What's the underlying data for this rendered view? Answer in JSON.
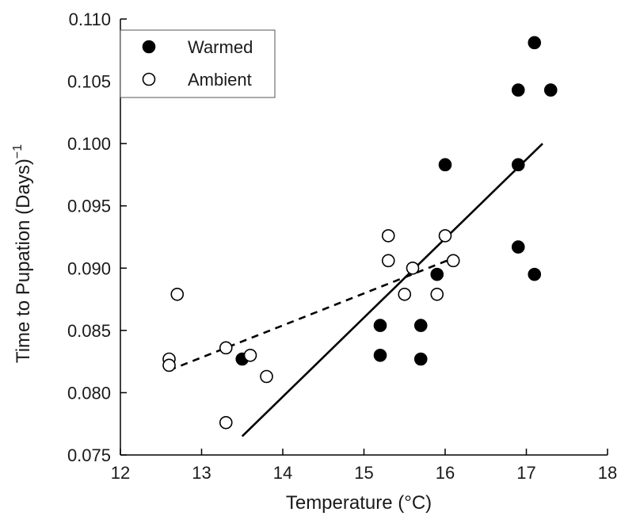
{
  "chart_data": {
    "type": "scatter",
    "title": "",
    "xlabel": "Temperature (°C)",
    "ylabel_main": "Time to Pupation (Days)",
    "ylabel_superscript": "−1",
    "xlim": [
      12,
      18
    ],
    "ylim": [
      0.075,
      0.11
    ],
    "xticks": [
      12,
      13,
      14,
      15,
      16,
      17,
      18
    ],
    "yticks": [
      0.075,
      0.08,
      0.085,
      0.09,
      0.095,
      0.1,
      0.105,
      0.11
    ],
    "ytick_labels": [
      "0.075",
      "0.080",
      "0.085",
      "0.090",
      "0.095",
      "0.100",
      "0.105",
      "0.110"
    ],
    "grid": false,
    "legend_position": "top-left",
    "series": [
      {
        "name": "Warmed",
        "marker": "filled-circle",
        "color": "#000000",
        "points": [
          [
            13.5,
            0.0827
          ],
          [
            15.2,
            0.0854
          ],
          [
            15.2,
            0.083
          ],
          [
            15.7,
            0.0854
          ],
          [
            15.7,
            0.0827
          ],
          [
            15.9,
            0.0895
          ],
          [
            16.0,
            0.0983
          ],
          [
            16.9,
            0.1043
          ],
          [
            16.9,
            0.0983
          ],
          [
            16.9,
            0.0917
          ],
          [
            17.1,
            0.1081
          ],
          [
            17.1,
            0.0895
          ],
          [
            17.3,
            0.1043
          ]
        ],
        "fit_line": {
          "style": "solid",
          "x": [
            13.5,
            17.2
          ],
          "y": [
            0.0765,
            0.1
          ]
        }
      },
      {
        "name": "Ambient",
        "marker": "open-circle",
        "color": "#000000",
        "points": [
          [
            12.6,
            0.0827
          ],
          [
            12.6,
            0.0822
          ],
          [
            12.7,
            0.0879
          ],
          [
            13.3,
            0.0836
          ],
          [
            13.3,
            0.0776
          ],
          [
            13.6,
            0.083
          ],
          [
            13.8,
            0.0813
          ],
          [
            15.3,
            0.0926
          ],
          [
            15.3,
            0.0906
          ],
          [
            15.5,
            0.0879
          ],
          [
            15.6,
            0.09
          ],
          [
            15.9,
            0.0879
          ],
          [
            16.0,
            0.0926
          ],
          [
            16.1,
            0.0906
          ]
        ],
        "fit_line": {
          "style": "dashed",
          "x": [
            12.6,
            16.1
          ],
          "y": [
            0.0818,
            0.0908
          ]
        }
      }
    ]
  }
}
